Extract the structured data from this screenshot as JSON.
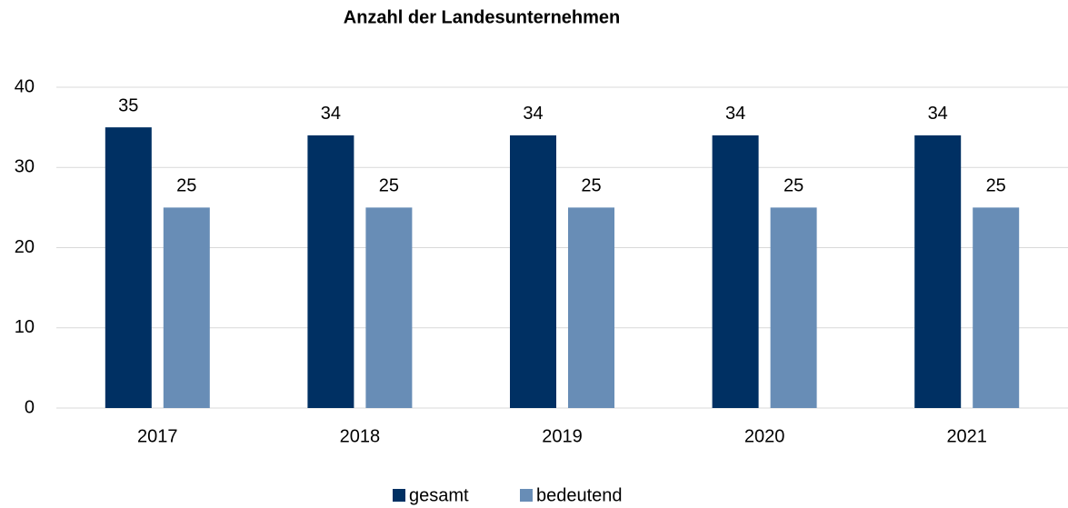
{
  "chart_data": {
    "type": "bar",
    "title": "Anzahl der Landesunternehmen",
    "categories": [
      "2017",
      "2018",
      "2019",
      "2020",
      "2021"
    ],
    "series": [
      {
        "name": "gesamt",
        "color": "#003063",
        "values": [
          35,
          34,
          34,
          34,
          34
        ]
      },
      {
        "name": "bedeutend",
        "color": "#688db6",
        "values": [
          25,
          25,
          25,
          25,
          25
        ]
      }
    ],
    "ylim": [
      0,
      40
    ],
    "yticks": [
      0,
      10,
      20,
      30,
      40
    ],
    "grid": true,
    "legend": "bottom"
  }
}
